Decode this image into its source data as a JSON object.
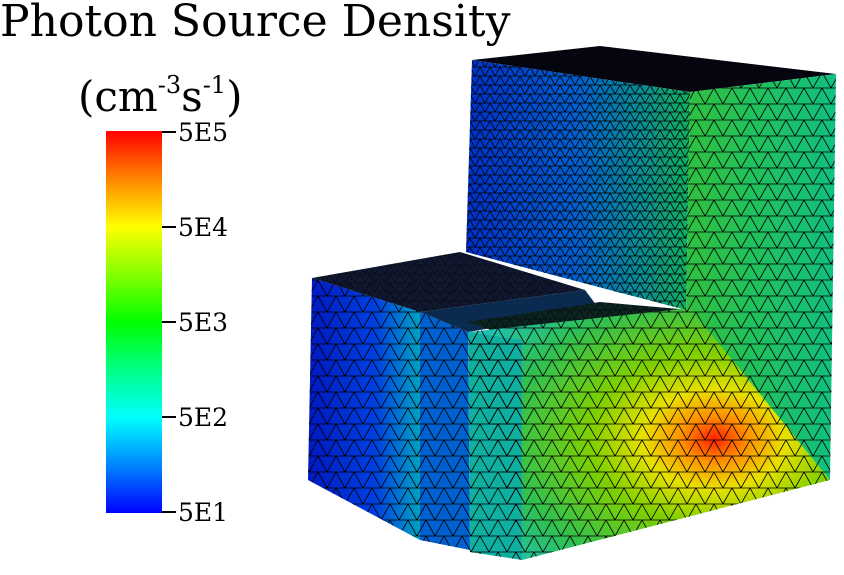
{
  "title": "Photon Source Density",
  "units": {
    "base": "(cm",
    "exp1": "-3",
    "mid": "s",
    "exp2": "-1",
    "close": ")"
  },
  "colorbar": {
    "labels": [
      "5E5",
      "5E4",
      "5E3",
      "5E2",
      "5E1"
    ],
    "scale": "log",
    "colors": [
      "#ff0000",
      "#ffff00",
      "#00ff00",
      "#00ffff",
      "#0000ff"
    ]
  }
}
